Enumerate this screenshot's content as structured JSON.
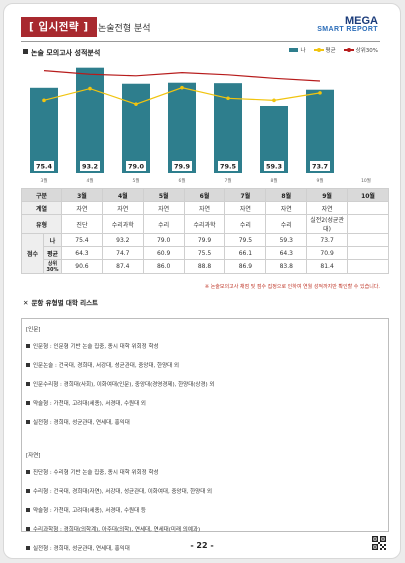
{
  "header": {
    "badge": "[ 입시전략 ]",
    "subtitle": "논술전형 분석",
    "logo_top": "MEGA",
    "logo_bottom": "SMART REPORT"
  },
  "section": {
    "title": "논술 모의고사 성적분석"
  },
  "chart_data": {
    "type": "bar",
    "categories": [
      "3월",
      "4월",
      "5월",
      "6월",
      "7월",
      "8월",
      "9월",
      "10월"
    ],
    "series": [
      {
        "name": "나",
        "kind": "bar",
        "color": "#2e7e8d",
        "values": [
          75.4,
          93.2,
          79.0,
          79.9,
          79.5,
          59.3,
          73.7,
          null
        ]
      },
      {
        "name": "평균",
        "kind": "line",
        "color": "#f1c40f",
        "values": [
          64.3,
          74.7,
          60.9,
          75.5,
          66.1,
          64.3,
          70.9,
          null
        ]
      },
      {
        "name": "상위30%",
        "kind": "line",
        "color": "#b71c1c",
        "values": [
          90.6,
          87.4,
          86.0,
          88.8,
          86.9,
          83.8,
          81.4,
          null
        ]
      }
    ],
    "bar_labels": [
      "75.4",
      "93.2",
      "79.0",
      "79.9",
      "79.5",
      "59.3",
      "73.7"
    ],
    "ylim": [
      0,
      100
    ],
    "legend": "top-right",
    "grid": false
  },
  "table": {
    "headers": [
      "구분",
      "3월",
      "4월",
      "5월",
      "6월",
      "7월",
      "8월",
      "9월",
      "10월"
    ],
    "row_series": {
      "label": "계열",
      "values": [
        "자연",
        "자연",
        "자연",
        "자연",
        "자연",
        "자연",
        "자연",
        ""
      ]
    },
    "row_type": {
      "label": "유형",
      "values": [
        "진단",
        "수리과학",
        "수리",
        "수리과학",
        "수리",
        "수리",
        "실전2(성균관대)",
        ""
      ]
    },
    "score_label": "점수",
    "row_me": {
      "label": "나",
      "values": [
        "75.4",
        "93.2",
        "79.0",
        "79.9",
        "79.5",
        "59.3",
        "73.7",
        ""
      ]
    },
    "row_avg": {
      "label": "평균",
      "values": [
        "64.3",
        "74.7",
        "60.9",
        "75.5",
        "66.1",
        "64.3",
        "70.9",
        ""
      ]
    },
    "row_top": {
      "label": "상위30%",
      "values": [
        "90.6",
        "87.4",
        "86.0",
        "88.8",
        "86.9",
        "83.8",
        "81.4",
        ""
      ]
    }
  },
  "note": "※ 논술모의고사 채점 및 점수 집정으로 인하여 연월 성적까지만 확인할 수 있습니다.",
  "types_section": {
    "title": "문항 유형별 대학 리스트",
    "groups": [
      {
        "label": "[인문]",
        "items": [
          "인문형 : 인문형 기반 논술 집중, 종시 대학 위회정 학성",
          "인문논술 : 건국대, 경희대, 서강대, 성균관대, 중앙대, 한양대 외",
          "인문수리형 : 경희대(사회), 이화여대(인문), 중앙대(경영경제), 한양대(상경) 외",
          "약술형 : 가천대, 고려대(세종), 서경대, 수원대 외",
          "실전형 : 경희대, 성균관대, 연세대, 홍익대"
        ]
      },
      {
        "label": "[자연]",
        "items": [
          "진단형 : 수리형 기반 논술 집중, 종시 대학 위회정 학성",
          "수리형 : 건국대, 경희대(자연), 서강대, 성균관대, 이화여대, 중앙대, 한양대 외",
          "약술형 : 가천대, 고려대(세종), 서경대, 수원대 등",
          "수리과학형 : 경희대(의학계), 아주대(의학), 연세대, 연세대(미래 의예과)",
          "실전형 : 경희대, 성균관대, 연세대, 홍익대"
        ]
      }
    ]
  },
  "footer": {
    "page_number": "- 22 -"
  }
}
